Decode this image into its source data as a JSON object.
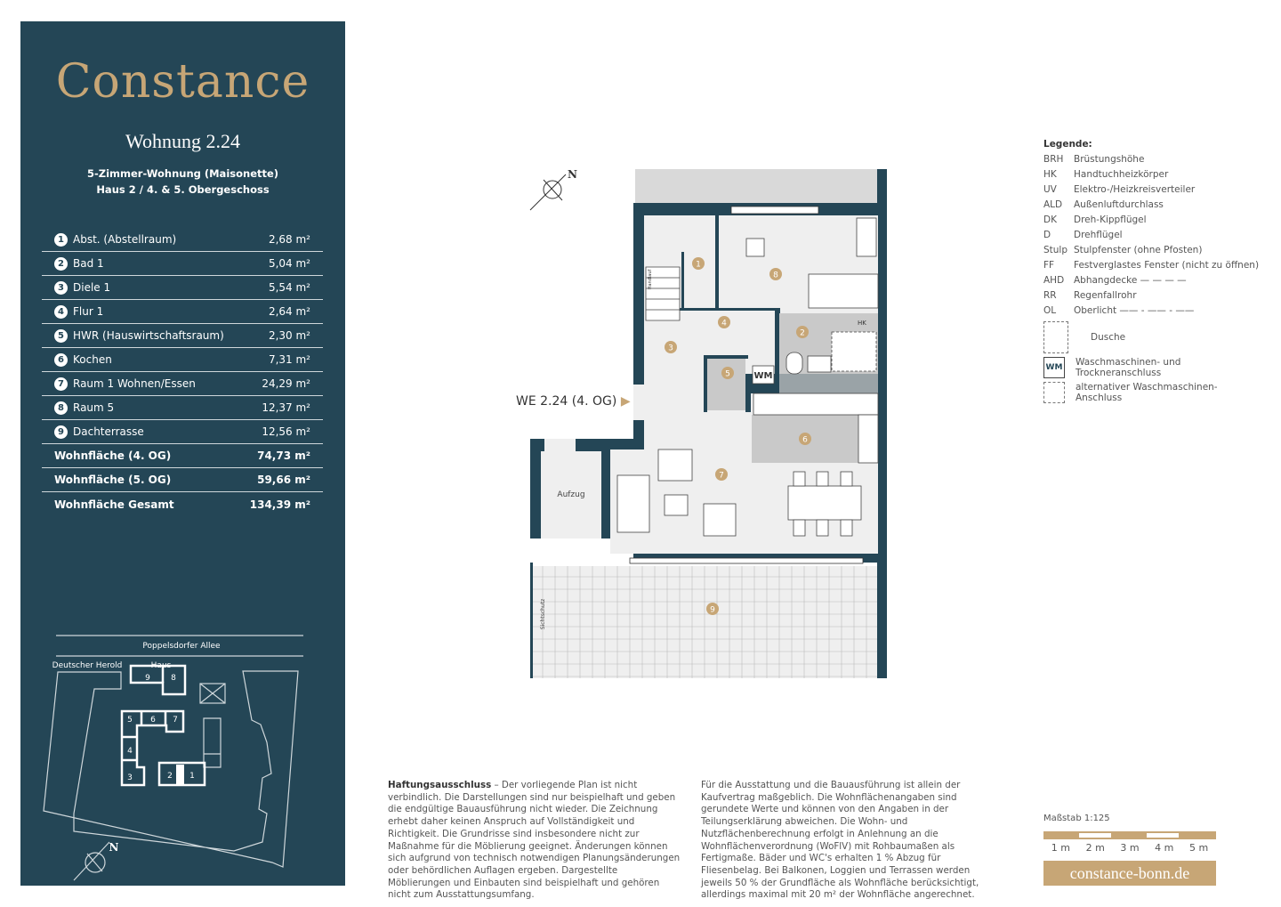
{
  "brand": "Constance",
  "apartment": {
    "title": "Wohnung 2.24",
    "type": "5-Zimmer-Wohnung (Maisonette)",
    "location": "Haus 2 / 4. & 5. Obergeschoss"
  },
  "rooms": [
    {
      "n": "1",
      "name": "Abst. (Abstellraum)",
      "area": "2,68 m²"
    },
    {
      "n": "2",
      "name": "Bad 1",
      "area": "5,04 m²"
    },
    {
      "n": "3",
      "name": "Diele 1",
      "area": "5,54 m²"
    },
    {
      "n": "4",
      "name": "Flur 1",
      "area": "2,64 m²"
    },
    {
      "n": "5",
      "name": "HWR (Hauswirtschaftsraum)",
      "area": "2,30 m²"
    },
    {
      "n": "6",
      "name": "Kochen",
      "area": "7,31 m²"
    },
    {
      "n": "7",
      "name": "Raum 1 Wohnen/Essen",
      "area": "24,29 m²"
    },
    {
      "n": "8",
      "name": "Raum 5",
      "area": "12,37 m²"
    },
    {
      "n": "9",
      "name": "Dachterrasse",
      "area": "12,56 m²"
    }
  ],
  "totals": [
    {
      "name": "Wohnfläche (4. OG)",
      "area": "74,73 m²"
    },
    {
      "name": "Wohnfläche (5. OG)",
      "area": "59,66 m²"
    },
    {
      "name": "Wohnfläche Gesamt",
      "area": "134,39 m²"
    }
  ],
  "site": {
    "street": "Poppelsdorfer Allee",
    "neighbor": "Deutscher Herold",
    "haus_label": "Haus",
    "houses": [
      "1",
      "2",
      "3",
      "4",
      "5",
      "6",
      "7",
      "8",
      "9"
    ],
    "north": "N"
  },
  "plan": {
    "entrance": "WE 2.24 (4. OG)",
    "elevator": "Aufzug",
    "north": "N",
    "wm": "WM",
    "hk": "HK",
    "uv": "UV",
    "privacy": "Sichtschutz",
    "stair": "Handlauf",
    "ald": "ALD"
  },
  "legend": {
    "title": "Legende:",
    "items": [
      {
        "abbr": "BRH",
        "text": "Brüstungshöhe"
      },
      {
        "abbr": "HK",
        "text": "Handtuchheizkörper"
      },
      {
        "abbr": "UV",
        "text": "Elektro-/Heizkreisverteiler"
      },
      {
        "abbr": "ALD",
        "text": "Außenluftdurchlass"
      },
      {
        "abbr": "DK",
        "text": "Dreh-Kippflügel"
      },
      {
        "abbr": "D",
        "text": "Drehflügel"
      },
      {
        "abbr": "Stulp",
        "text": "Stulpfenster (ohne Pfosten)"
      },
      {
        "abbr": "FF",
        "text": "Festverglastes Fenster (nicht zu öffnen)"
      },
      {
        "abbr": "AHD",
        "text": "Abhangdecke — — — —"
      },
      {
        "abbr": "RR",
        "text": "Regenfallrohr"
      },
      {
        "abbr": "OL",
        "text": "Oberlicht —— - —— - ——"
      }
    ],
    "shower": "Dusche",
    "wm_symbol": "WM",
    "wm": "Waschmaschinen- und Trockneranschluss",
    "alt_wm": "alternativer Waschmaschinen-Anschluss"
  },
  "disclaimer": {
    "heading": "Haftungsausschluss",
    "text1": " – Der vorliegende Plan ist nicht verbindlich. Die Darstellungen sind nur beispielhaft und geben die endgültige Bauausführung nicht wieder. Die Zeichnung erhebt daher keinen Anspruch auf Vollständigkeit und Richtigkeit. Die Grundrisse sind insbesondere nicht zur Maßnahme für die Möblierung geeignet. Änderungen können sich aufgrund von technisch notwendigen Planungsänderungen oder behördlichen Auflagen ergeben. Dargestellte Möblierungen und Einbauten sind beispielhaft und gehören nicht zum Ausstattungsumfang.",
    "text2": "Für die Ausstattung und die Bauausführung ist allein der Kaufvertrag maßgeblich. Die Wohnflächenangaben sind gerundete Werte und können von den Angaben in der Teilungserklärung abweichen. Die Wohn- und Nutzflächenberechnung erfolgt in Anlehnung an die Wohnflächenverordnung (WoFlV) mit Rohbaumaßen als Fertigmaße. Bäder und WC's erhalten 1 % Abzug für Fliesenbelag. Bei Balkonen, Loggien und Terrassen werden jeweils 50 % der Grundfläche als Wohnfläche berücksichtigt, allerdings maximal mit 20 m² der Wohnfläche angerechnet."
  },
  "scale": {
    "label": "Maßstab 1:125",
    "ticks": [
      "1 m",
      "2 m",
      "3 m",
      "4 m",
      "5 m"
    ]
  },
  "url": "constance-bonn.de",
  "colors": {
    "navy": "#244656",
    "gold": "#c7a676"
  }
}
